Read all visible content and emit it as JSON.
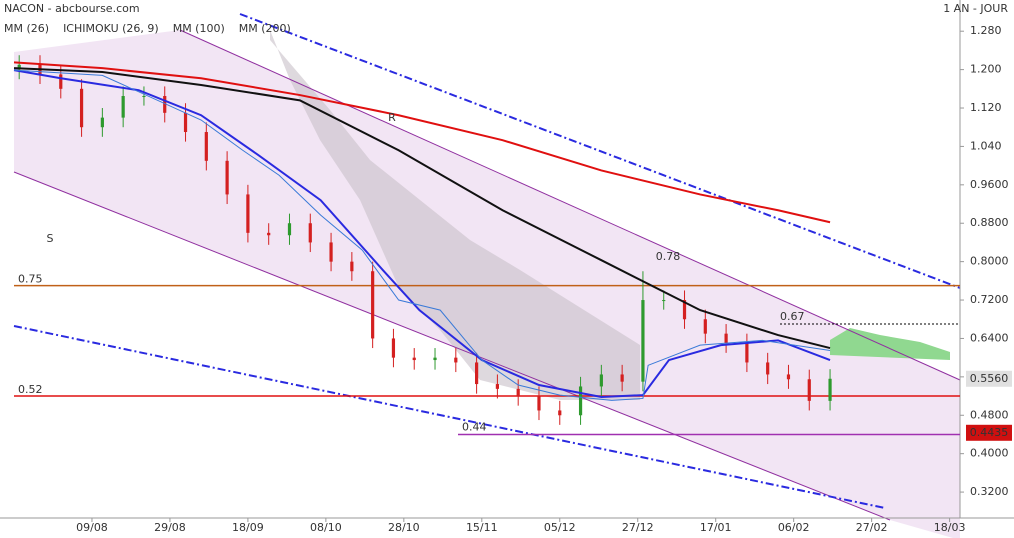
{
  "chart_data": {
    "type": "candlestick",
    "title": "NACON - abcbourse.com",
    "subtitle": "1 AN - JOUR",
    "xlim": [
      0,
      182
    ],
    "ylim": [
      0.266,
      1.345
    ],
    "xticks": [
      {
        "value": 15,
        "label": "09/08"
      },
      {
        "value": 30,
        "label": "29/08"
      },
      {
        "value": 45,
        "label": "18/09"
      },
      {
        "value": 60,
        "label": "08/10"
      },
      {
        "value": 75,
        "label": "28/10"
      },
      {
        "value": 90,
        "label": "15/11"
      },
      {
        "value": 105,
        "label": "05/12"
      },
      {
        "value": 120,
        "label": "27/12"
      },
      {
        "value": 135,
        "label": "17/01"
      },
      {
        "value": 150,
        "label": "06/02"
      },
      {
        "value": 165,
        "label": "27/02"
      },
      {
        "value": 180,
        "label": "18/03"
      }
    ],
    "yticks": [
      {
        "value": 1.28,
        "label": "1.280"
      },
      {
        "value": 1.2,
        "label": "1.200"
      },
      {
        "value": 1.12,
        "label": "1.120"
      },
      {
        "value": 1.04,
        "label": "1.040"
      },
      {
        "value": 0.96,
        "label": "0.9600"
      },
      {
        "value": 0.88,
        "label": "0.8800"
      },
      {
        "value": 0.8,
        "label": "0.8000"
      },
      {
        "value": 0.72,
        "label": "0.7200"
      },
      {
        "value": 0.64,
        "label": "0.6400"
      },
      {
        "value": 0.56,
        "label": "0.5600"
      },
      {
        "value": 0.48,
        "label": "0.4800"
      },
      {
        "value": 0.4,
        "label": "0.4000"
      },
      {
        "value": 0.32,
        "label": "0.3200"
      }
    ],
    "candles": {
      "up_color": "#2e9a2e",
      "down_color": "#d42020",
      "x": [
        1,
        5,
        9,
        13,
        17,
        21,
        25,
        29,
        33,
        37,
        41,
        45,
        49,
        53,
        57,
        61,
        65,
        69,
        73,
        77,
        81,
        85,
        89,
        93,
        97,
        101,
        105,
        109,
        113,
        117,
        121,
        125,
        129,
        133,
        137,
        141,
        145,
        149,
        153,
        157
      ],
      "open": [
        1.2,
        1.21,
        1.19,
        1.16,
        1.08,
        1.1,
        1.145,
        1.145,
        1.11,
        1.07,
        1.01,
        0.94,
        0.86,
        0.855,
        0.88,
        0.84,
        0.8,
        0.78,
        0.64,
        0.6,
        0.595,
        0.6,
        0.59,
        0.545,
        0.535,
        0.52,
        0.49,
        0.48,
        0.54,
        0.565,
        0.55,
        0.72,
        0.72,
        0.68,
        0.65,
        0.63,
        0.59,
        0.565,
        0.555,
        0.51
      ],
      "high": [
        1.23,
        1.23,
        1.21,
        1.18,
        1.12,
        1.165,
        1.165,
        1.165,
        1.13,
        1.09,
        1.03,
        0.96,
        0.88,
        0.9,
        0.9,
        0.86,
        0.82,
        0.8,
        0.66,
        0.62,
        0.62,
        0.62,
        0.61,
        0.565,
        0.555,
        0.54,
        0.51,
        0.56,
        0.585,
        0.585,
        0.78,
        0.74,
        0.74,
        0.7,
        0.67,
        0.65,
        0.61,
        0.585,
        0.575,
        0.576
      ],
      "low": [
        1.18,
        1.17,
        1.14,
        1.06,
        1.06,
        1.08,
        1.125,
        1.09,
        1.05,
        0.99,
        0.92,
        0.84,
        0.835,
        0.835,
        0.82,
        0.78,
        0.76,
        0.62,
        0.58,
        0.575,
        0.575,
        0.57,
        0.525,
        0.515,
        0.5,
        0.47,
        0.46,
        0.46,
        0.52,
        0.53,
        0.53,
        0.7,
        0.66,
        0.63,
        0.61,
        0.57,
        0.545,
        0.535,
        0.49,
        0.49
      ],
      "close": [
        1.21,
        1.19,
        1.16,
        1.08,
        1.1,
        1.145,
        1.145,
        1.11,
        1.07,
        1.01,
        0.94,
        0.86,
        0.855,
        0.88,
        0.84,
        0.8,
        0.78,
        0.64,
        0.6,
        0.595,
        0.6,
        0.59,
        0.545,
        0.535,
        0.52,
        0.49,
        0.48,
        0.54,
        0.565,
        0.55,
        0.72,
        0.72,
        0.68,
        0.65,
        0.63,
        0.59,
        0.565,
        0.555,
        0.51,
        0.556
      ]
    },
    "series": [
      {
        "name": "MM (26)",
        "color": "#2a2ae0",
        "x": [
          0,
          9,
          24,
          36,
          47,
          59,
          71,
          78,
          90,
          101,
          113,
          121,
          126,
          136,
          147,
          157
        ],
        "values": [
          1.199,
          1.182,
          1.157,
          1.105,
          1.022,
          0.928,
          0.782,
          0.699,
          0.595,
          0.543,
          0.518,
          0.522,
          0.595,
          0.626,
          0.636,
          0.595
        ]
      },
      {
        "name": "ICHIMOKU (26, 9)",
        "color": "#3a7ad8",
        "x": [
          0,
          17,
          36,
          44,
          51,
          59,
          67,
          74,
          82,
          90,
          97,
          105,
          115,
          121,
          122,
          132,
          144,
          157
        ],
        "values": [
          1.199,
          1.188,
          1.095,
          1.032,
          0.98,
          0.897,
          0.824,
          0.72,
          0.699,
          0.595,
          0.543,
          0.522,
          0.511,
          0.515,
          0.584,
          0.626,
          0.636,
          0.615
        ]
      },
      {
        "name": "MM (100)",
        "color": "#111111",
        "x": [
          0,
          17,
          36,
          55,
          74,
          94,
          113,
          132,
          147,
          157
        ],
        "values": [
          1.203,
          1.195,
          1.168,
          1.136,
          1.032,
          0.907,
          0.803,
          0.699,
          0.647,
          0.62
        ]
      },
      {
        "name": "MM (200)",
        "color": "#e01010",
        "x": [
          0,
          17,
          36,
          55,
          74,
          94,
          113,
          132,
          147,
          157
        ],
        "values": [
          1.215,
          1.203,
          1.182,
          1.147,
          1.105,
          1.053,
          0.99,
          0.94,
          0.907,
          0.882
        ]
      }
    ],
    "levels": [
      {
        "value": 0.75,
        "color": "#c06018"
      },
      {
        "value": 0.52,
        "color": "#e01010"
      },
      {
        "value": 0.44,
        "color": "#a030b0"
      },
      {
        "value": 0.67,
        "color": "#000000"
      }
    ],
    "annotations": [
      "0.78",
      "R",
      "S"
    ],
    "last_price": {
      "value": 0.556,
      "label": "0.5560"
    },
    "low_price": {
      "value": 0.4435,
      "label": "0.4435"
    }
  }
}
